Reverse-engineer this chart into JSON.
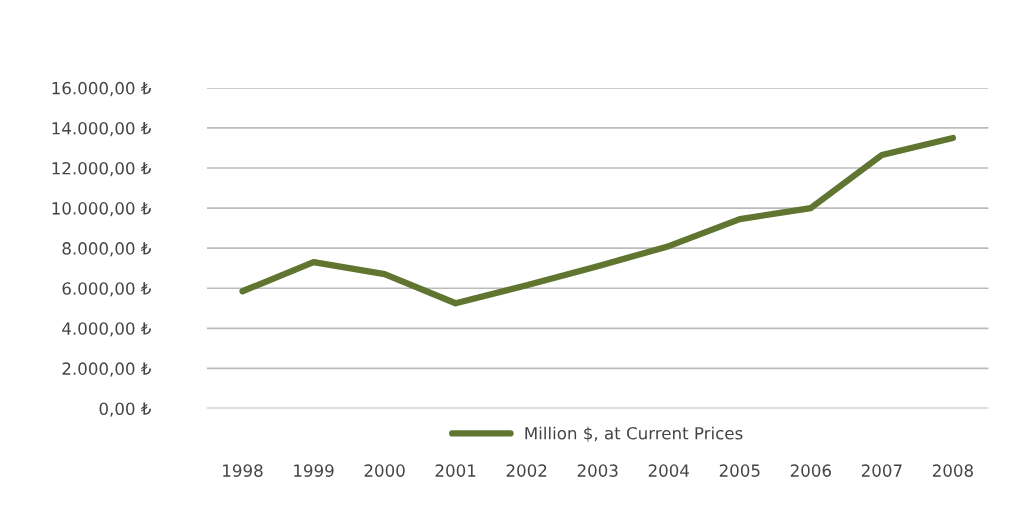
{
  "chart_data": {
    "type": "line",
    "categories": [
      "1998",
      "1999",
      "2000",
      "2001",
      "2002",
      "2003",
      "2004",
      "2005",
      "2006",
      "2007",
      "2008"
    ],
    "series": [
      {
        "name": "Million $, at Current Prices",
        "color": "#5f7530",
        "values": [
          5850,
          7300,
          6700,
          5250,
          6150,
          7100,
          8100,
          9450,
          10000,
          12650,
          13500
        ]
      }
    ],
    "ylim": [
      0,
      16000
    ],
    "yticks": [
      {
        "value": 0,
        "label": "0,00 ₺"
      },
      {
        "value": 2000,
        "label": "2.000,00 ₺"
      },
      {
        "value": 4000,
        "label": "4.000,00 ₺"
      },
      {
        "value": 6000,
        "label": "6.000,00 ₺"
      },
      {
        "value": 8000,
        "label": "8.000,00 ₺"
      },
      {
        "value": 10000,
        "label": "10.000,00 ₺"
      },
      {
        "value": 12000,
        "label": "12.000,00 ₺"
      },
      {
        "value": 14000,
        "label": "14.000,00 ₺"
      },
      {
        "value": 16000,
        "label": "16.000,00 ₺"
      }
    ],
    "grid": "y",
    "legend": "bottom",
    "marker": "none",
    "line_style": "solid"
  }
}
